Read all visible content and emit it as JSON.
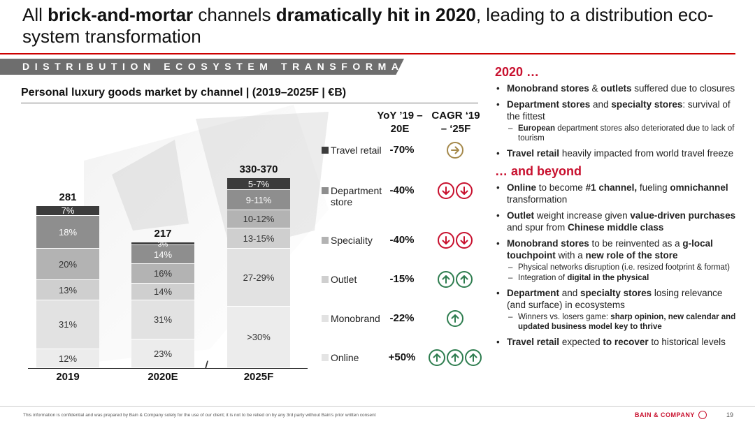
{
  "title": {
    "p1": "All ",
    "b1": "brick-and-mortar",
    "p2": " channels ",
    "b2": "dramatically hit in 2020",
    "p3": ", leading to a distribution eco-system transformation"
  },
  "banner": "DISTRIBUTION ECOSYSTEM TRANSFORMATION",
  "chart_data": {
    "type": "bar",
    "title": "Personal luxury goods market by channel | (2019–2025F | €B)",
    "categories": [
      "2019",
      "2020E",
      "2025F"
    ],
    "totals": [
      "281",
      "217",
      "330-370"
    ],
    "series": [
      {
        "name": "Online",
        "values": [
          12,
          23,
          30
        ],
        "labels": [
          "12%",
          "23%",
          ">30%"
        ]
      },
      {
        "name": "Monobrand",
        "values": [
          31,
          31,
          28
        ],
        "labels": [
          "31%",
          "31%",
          "27-29%"
        ]
      },
      {
        "name": "Outlet",
        "values": [
          13,
          14,
          14
        ],
        "labels": [
          "13%",
          "14%",
          "13-15%"
        ]
      },
      {
        "name": "Speciality",
        "values": [
          20,
          16,
          11
        ],
        "labels": [
          "20%",
          "16%",
          "10-12%"
        ]
      },
      {
        "name": "Department store",
        "values": [
          18,
          14,
          10
        ],
        "labels": [
          "18%",
          "14%",
          "9-11%"
        ]
      },
      {
        "name": "Travel retail",
        "values": [
          7,
          3,
          6
        ],
        "labels": [
          "7%",
          "3%",
          "5-7%"
        ]
      }
    ],
    "colors": [
      "#ececec",
      "#e2e2e2",
      "#cfcfcf",
      "#b3b3b3",
      "#8e8e8e",
      "#3c3c3c"
    ],
    "column_headers": {
      "yoy": "YoY ’19 – 20E",
      "cagr": "CAGR ‘19 – ‘25F"
    },
    "yoy": {
      "Travel retail": "-70%",
      "Department store": "-40%",
      "Speciality": "-40%",
      "Outlet": "-15%",
      "Monobrand": "-22%",
      "Online": "+50%"
    },
    "cagr_icons": {
      "Travel retail": {
        "dir": "right",
        "count": 1,
        "color": "#a5894b"
      },
      "Department store": {
        "dir": "down",
        "count": 2,
        "color": "#c8102e"
      },
      "Speciality": {
        "dir": "down",
        "count": 2,
        "color": "#c8102e"
      },
      "Outlet": {
        "dir": "up",
        "count": 2,
        "color": "#2e7d4f"
      },
      "Monobrand": {
        "dir": "up",
        "count": 1,
        "color": "#2e7d4f"
      },
      "Online": {
        "dir": "up",
        "count": 3,
        "color": "#2e7d4f"
      }
    },
    "legend_order": [
      "Travel retail",
      "Department store",
      "Speciality",
      "Outlet",
      "Monobrand",
      "Online"
    ],
    "legend_labels": {
      "Department store": [
        "Department",
        "store"
      ]
    }
  },
  "right": {
    "h1": "2020 …",
    "h2": "… and beyond"
  },
  "footer": {
    "disclaimer": "This information is confidential and was prepared by Bain & Company solely for the use of our client; it is not to be relied on by any 3rd party without Bain's prior written consent",
    "brand": "BAIN & COMPANY",
    "page": "19"
  }
}
